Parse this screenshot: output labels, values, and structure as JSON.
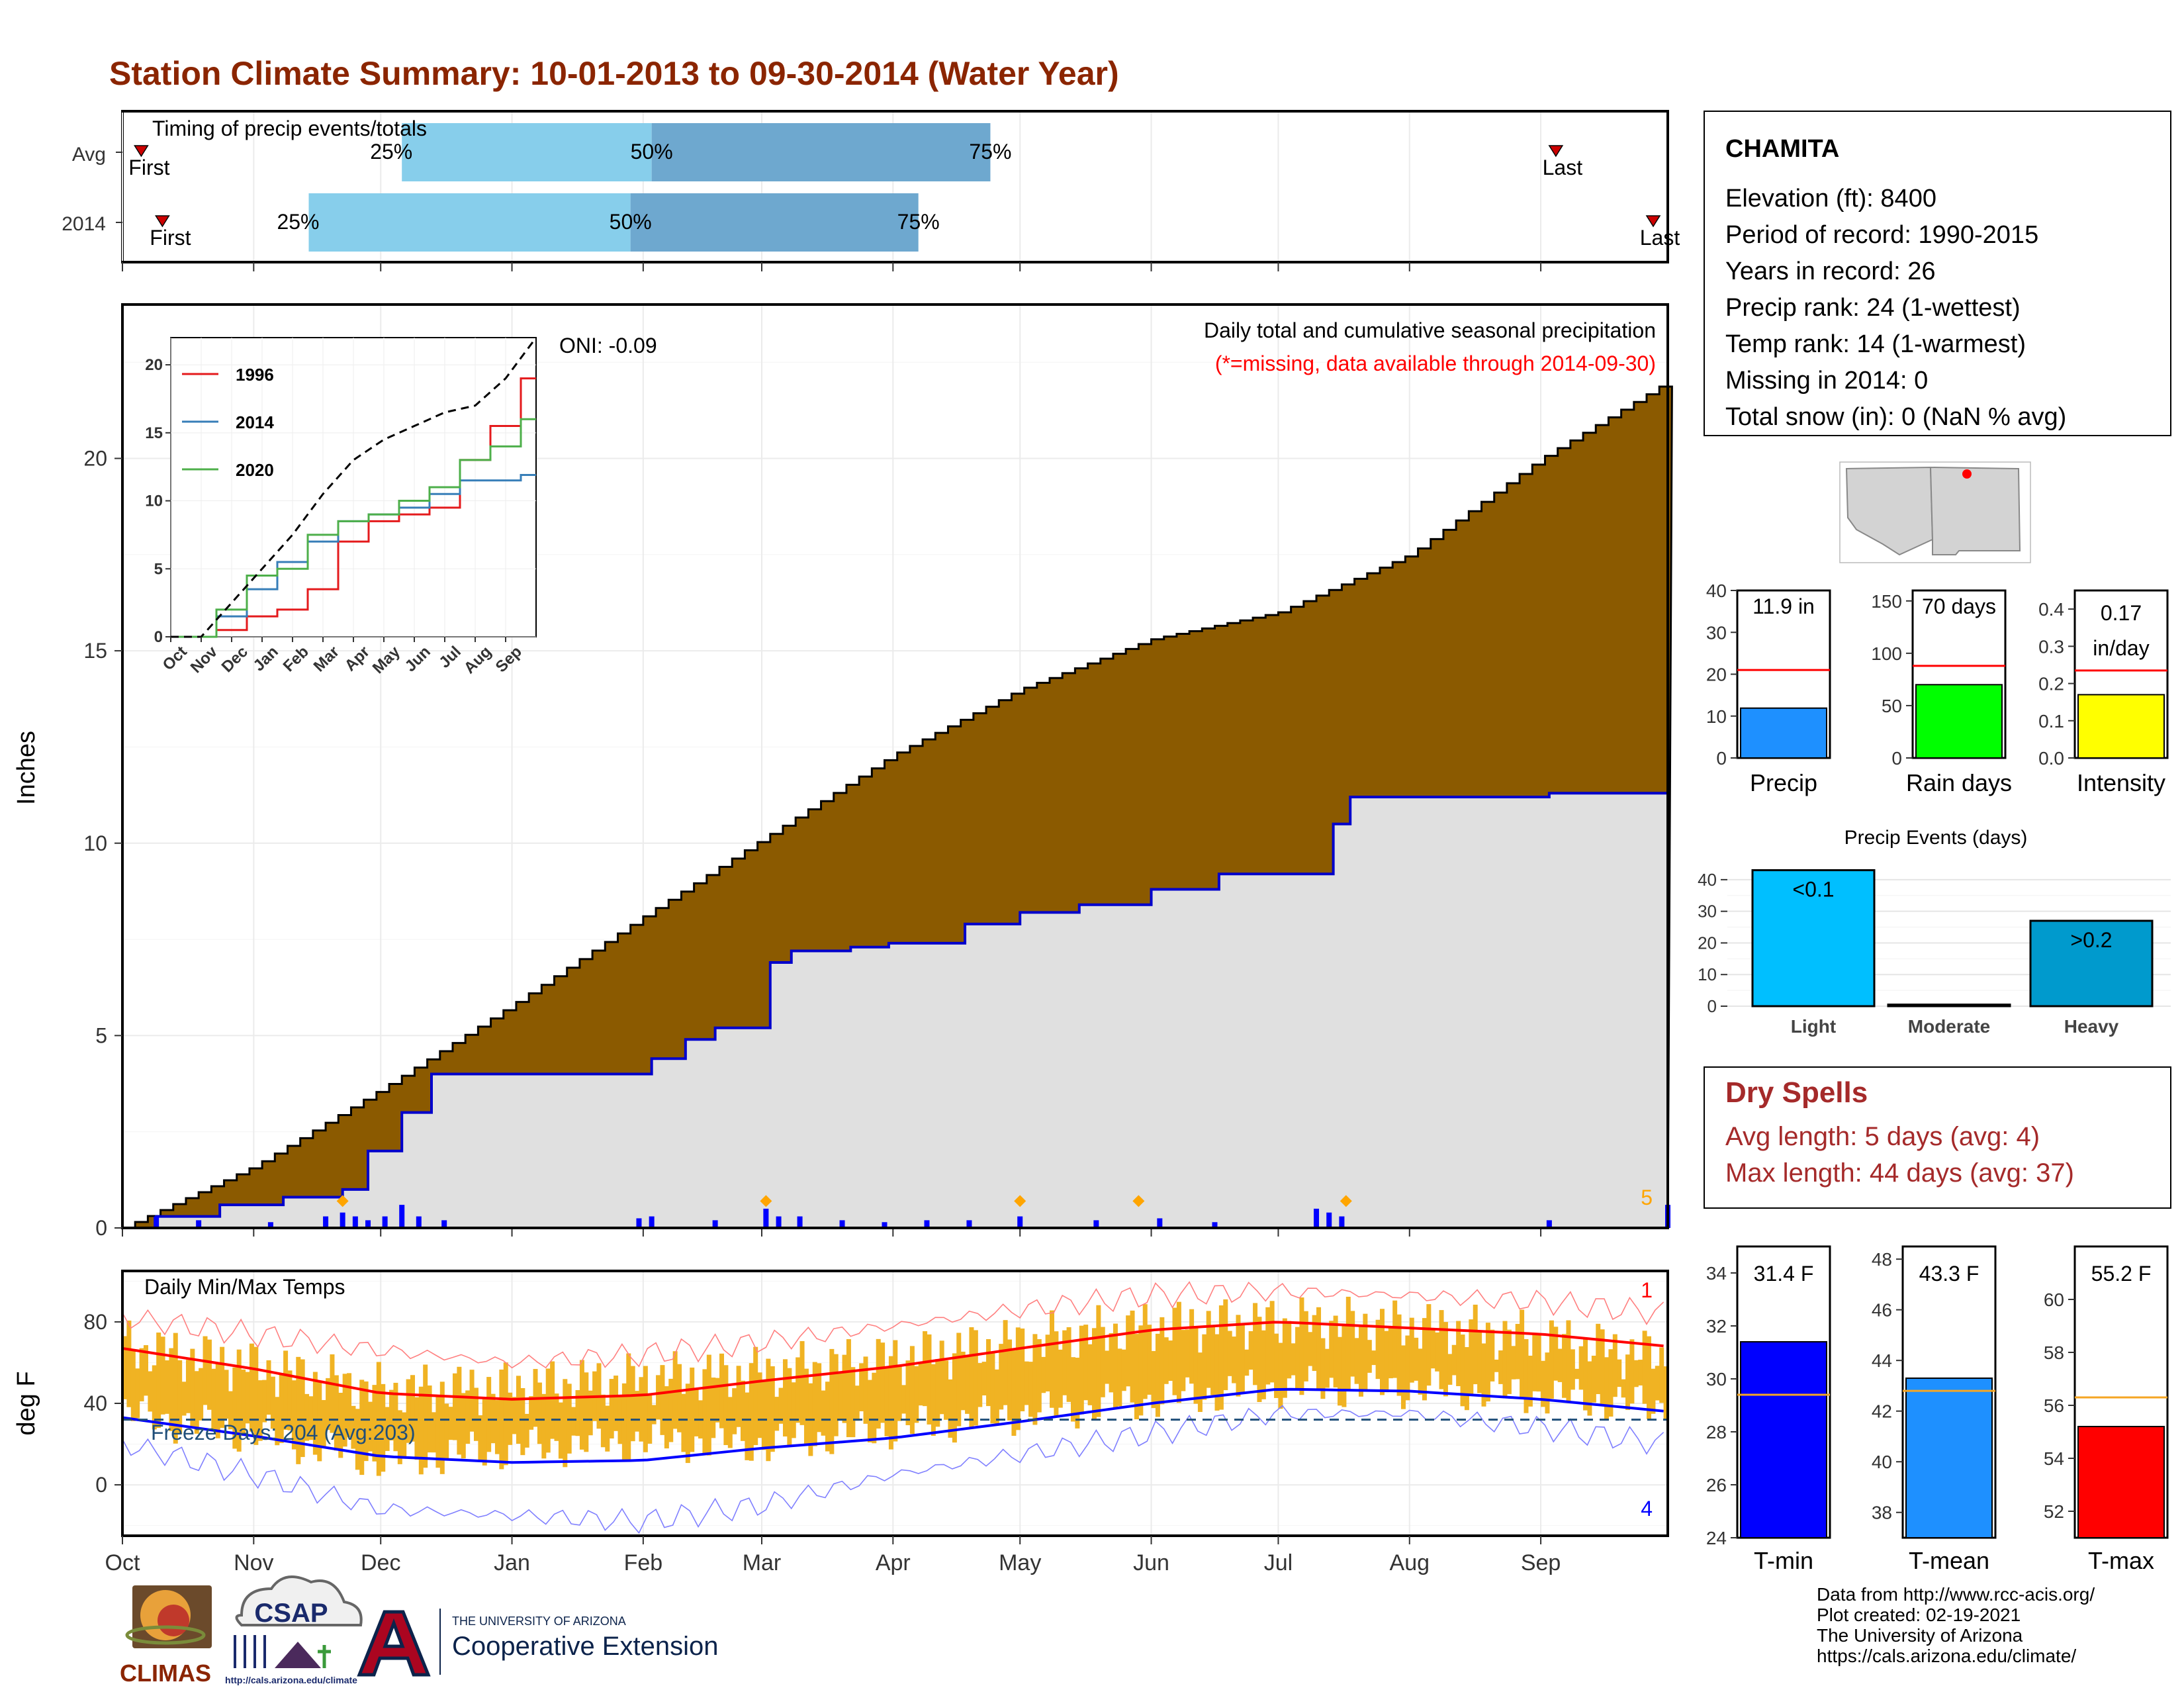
{
  "title": "Station Climate Summary: 10-01-2013 to 09-30-2014 (Water Year)",
  "colors": {
    "title": "#8b2500",
    "area": "#8b5a00",
    "season_line": "#0000cc",
    "mask": "#e0e0e0",
    "daily_bars": "#0000ff",
    "q_light": "#87ceeb",
    "q_dark": "#6ea8cf"
  },
  "timing": {
    "label": "Timing of precip events/totals",
    "rows": [
      {
        "name": "Avg",
        "first_label": "First",
        "last_label": "Last",
        "q25": "25%",
        "q50": "50%",
        "q75": "75%",
        "first_day": 1,
        "q25_day": 66,
        "q50_day": 125,
        "q75_day": 205,
        "last_day": 342
      },
      {
        "name": "2014",
        "first_label": "First",
        "last_label": "Last",
        "q25": "25%",
        "q50": "50%",
        "q75": "75%",
        "first_day": 6,
        "q25_day": 44,
        "q50_day": 120,
        "q75_day": 188,
        "last_day": 365
      }
    ]
  },
  "station": {
    "name": "CHAMITA",
    "lines": [
      "Elevation (ft): 8400",
      "Period of record: 1990-2015",
      "Years in record: 26",
      "Precip rank: 24 (1-wettest)",
      "Temp rank: 14 (1-warmest)",
      "Missing in 2014: 0",
      "Total snow (in): 0 (NaN % avg)"
    ]
  },
  "precip_panel": {
    "ylabel": "Inches",
    "oni": "ONI: -0.09",
    "desc": "Daily total and cumulative seasonal precipitation",
    "missing_note": "(*=missing, data available through 2014-09-30)",
    "corner_label": "5",
    "y_ticks": [
      "0",
      "5",
      "10",
      "15",
      "20"
    ]
  },
  "inset": {
    "legend": [
      "1996",
      "2014",
      "2020"
    ],
    "y_ticks": [
      "0",
      "5",
      "10",
      "15",
      "20"
    ],
    "x_ticks": [
      "Oct",
      "Nov",
      "Dec",
      "Jan",
      "Feb",
      "Mar",
      "Apr",
      "May",
      "Jun",
      "Jul",
      "Aug",
      "Sep"
    ]
  },
  "temp_panel": {
    "ylabel": "deg F",
    "label": "Daily Min/Max Temps",
    "freeze": "Freeze Days: 204 (Avg:203)",
    "top_right": "1",
    "bottom_right": "4",
    "y_ticks": [
      "0",
      "40",
      "80"
    ]
  },
  "months": [
    "Oct",
    "Nov",
    "Dec",
    "Jan",
    "Feb",
    "Mar",
    "Apr",
    "May",
    "Jun",
    "Jul",
    "Aug",
    "Sep"
  ],
  "mini_precip": {
    "label": "Precip",
    "value_label": "11.9 in",
    "y_ticks": [
      "0",
      "10",
      "20",
      "30",
      "40"
    ]
  },
  "mini_raindays": {
    "label": "Rain days",
    "value_label": "70 days",
    "y_ticks": [
      "0",
      "50",
      "100",
      "150"
    ]
  },
  "mini_intensity": {
    "label": "Intensity",
    "value_label": "0.17",
    "value_unit": "in/day",
    "y_ticks": [
      "0.0",
      "0.1",
      "0.2",
      "0.3",
      "0.4"
    ]
  },
  "events": {
    "title": "Precip Events (days)",
    "categories": [
      "Light",
      "Moderate",
      "Heavy"
    ],
    "bar_labels": [
      "<0.1",
      "",
      ">0.2"
    ],
    "y_ticks": [
      "0",
      "10",
      "20",
      "30",
      "40"
    ]
  },
  "dry_spells": {
    "title": "Dry Spells",
    "avg": "Avg length: 5 days (avg: 4)",
    "max": "Max length: 44 days (avg: 37)"
  },
  "tmin_box": {
    "label": "T-min",
    "value_label": "31.4 F",
    "y_ticks": [
      "24",
      "26",
      "28",
      "30",
      "32",
      "34"
    ]
  },
  "tmean_box": {
    "label": "T-mean",
    "value_label": "43.3 F",
    "y_ticks": [
      "38",
      "40",
      "42",
      "44",
      "46",
      "48"
    ]
  },
  "tmax_box": {
    "label": "T-max",
    "value_label": "55.2 F",
    "y_ticks": [
      "52",
      "54",
      "56",
      "58",
      "60"
    ]
  },
  "footer": [
    "Data from http://www.rcc-acis.org/",
    "Plot created: 02-19-2021",
    "The University of Arizona",
    "https://cals.arizona.edu/climate/"
  ],
  "logos": {
    "climas": "CLIMAS",
    "csap": "CSAP",
    "csap_url": "http://cals.arizona.edu/climate",
    "ua_top": "THE UNIVERSITY OF ARIZONA",
    "ua_bottom": "Cooperative Extension"
  },
  "chart_data": [
    {
      "type": "area",
      "title": "Daily total and cumulative seasonal precipitation",
      "ylabel": "Inches",
      "ylim": [
        0,
        24
      ],
      "x_months": [
        "Oct",
        "Nov",
        "Dec",
        "Jan",
        "Feb",
        "Mar",
        "Apr",
        "May",
        "Jun",
        "Jul",
        "Aug",
        "Sep"
      ],
      "series": [
        {
          "name": "average cumulative",
          "x_day": [
            0,
            31,
            61,
            92,
            123,
            151,
            182,
            212,
            243,
            273,
            304,
            335,
            365
          ],
          "values": [
            0,
            1.6,
            3.6,
            5.8,
            8.1,
            10.1,
            12.3,
            14.0,
            15.3,
            16.0,
            17.5,
            20.0,
            22.0
          ]
        },
        {
          "name": "2014 cumulative",
          "x_day": [
            0,
            8,
            23,
            38,
            52,
            58,
            66,
            73,
            120,
            125,
            133,
            140,
            152,
            153,
            158,
            172,
            181,
            199,
            212,
            226,
            243,
            259,
            282,
            286,
            290,
            337,
            364,
            365
          ],
          "values": [
            0,
            0.3,
            0.6,
            0.8,
            1.0,
            2.0,
            3.0,
            4.0,
            4.0,
            4.4,
            4.9,
            5.2,
            5.2,
            6.9,
            7.2,
            7.3,
            7.4,
            7.9,
            8.2,
            8.4,
            8.8,
            9.2,
            9.2,
            10.5,
            11.2,
            11.3,
            11.3,
            11.9
          ]
        }
      ],
      "daily_bars": {
        "x_day": [
          8,
          18,
          35,
          48,
          52,
          55,
          58,
          62,
          66,
          70,
          76,
          122,
          125,
          140,
          152,
          155,
          160,
          170,
          180,
          190,
          200,
          212,
          230,
          245,
          258,
          282,
          285,
          288,
          337,
          365
        ],
        "values": [
          0.3,
          0.2,
          0.15,
          0.3,
          0.4,
          0.3,
          0.2,
          0.3,
          0.6,
          0.3,
          0.2,
          0.25,
          0.3,
          0.2,
          0.5,
          0.3,
          0.3,
          0.2,
          0.15,
          0.2,
          0.2,
          0.3,
          0.2,
          0.25,
          0.15,
          0.5,
          0.4,
          0.3,
          0.2,
          0.6
        ]
      },
      "missing_markers_day": [
        52,
        152,
        212,
        240,
        289
      ]
    },
    {
      "type": "line",
      "title": "",
      "ylim": [
        0,
        22
      ],
      "x_months": [
        "Oct",
        "Nov",
        "Dec",
        "Jan",
        "Feb",
        "Mar",
        "Apr",
        "May",
        "Jun",
        "Jul",
        "Aug",
        "Sep"
      ],
      "series": [
        {
          "name": "1996",
          "values": [
            0,
            0.5,
            1.5,
            2.0,
            3.5,
            7.0,
            8.5,
            9.0,
            9.5,
            13.0,
            15.5,
            19.0
          ]
        },
        {
          "name": "2014",
          "values": [
            0,
            1.5,
            3.5,
            5.5,
            7.0,
            8.5,
            9.0,
            9.5,
            10.5,
            11.5,
            11.5,
            11.9
          ]
        },
        {
          "name": "2020",
          "values": [
            0,
            2.0,
            4.5,
            5.0,
            7.5,
            8.5,
            9.0,
            10.0,
            11.0,
            13.0,
            14.0,
            16.0
          ]
        },
        {
          "name": "average",
          "values": [
            0,
            2.5,
            5.0,
            7.5,
            10.5,
            13.0,
            14.5,
            15.5,
            16.5,
            17.0,
            19.0,
            22.0
          ]
        }
      ]
    },
    {
      "type": "line",
      "title": "Daily Min/Max Temps",
      "ylabel": "deg F",
      "ylim": [
        -25,
        105
      ],
      "x_months": [
        "Oct",
        "Nov",
        "Dec",
        "Jan",
        "Feb",
        "Mar",
        "Apr",
        "May",
        "Jun",
        "Jul",
        "Aug",
        "Sep"
      ],
      "series": [
        {
          "name": "avg max",
          "x_day": [
            0,
            31,
            61,
            92,
            123,
            151,
            182,
            212,
            243,
            273,
            304,
            335,
            365
          ],
          "values": [
            67,
            57,
            45,
            42,
            44,
            51,
            58,
            67,
            76,
            80,
            77,
            74,
            68
          ]
        },
        {
          "name": "avg min",
          "x_day": [
            0,
            31,
            61,
            92,
            123,
            151,
            182,
            212,
            243,
            273,
            304,
            335,
            365
          ],
          "values": [
            33,
            24,
            14,
            11,
            12,
            18,
            23,
            31,
            40,
            47,
            46,
            42,
            36
          ]
        },
        {
          "name": "record max",
          "x_day": [
            0,
            31,
            61,
            92,
            123,
            151,
            182,
            212,
            243,
            273,
            304,
            335,
            365
          ],
          "values": [
            82,
            74,
            66,
            60,
            64,
            70,
            78,
            86,
            93,
            95,
            93,
            90,
            84
          ]
        },
        {
          "name": "record min",
          "x_day": [
            0,
            31,
            61,
            92,
            123,
            151,
            182,
            212,
            243,
            273,
            304,
            335,
            365
          ],
          "values": [
            20,
            5,
            -12,
            -15,
            -18,
            -10,
            5,
            15,
            25,
            35,
            35,
            28,
            20
          ]
        },
        {
          "name": "2014 max",
          "x_day": [
            0,
            31,
            61,
            92,
            123,
            151,
            182,
            212,
            243,
            273,
            304,
            335,
            365
          ],
          "values": [
            68,
            58,
            46,
            48,
            52,
            55,
            62,
            70,
            78,
            80,
            78,
            72,
            62
          ]
        },
        {
          "name": "2014 min",
          "x_day": [
            0,
            31,
            61,
            92,
            123,
            151,
            182,
            212,
            243,
            273,
            304,
            335,
            365
          ],
          "values": [
            35,
            25,
            12,
            18,
            22,
            20,
            28,
            35,
            42,
            48,
            48,
            44,
            38
          ]
        }
      ],
      "freeze_threshold": 32
    },
    {
      "type": "bar",
      "title": "",
      "categories": [
        "Precip"
      ],
      "values": [
        11.9
      ],
      "avg": 21,
      "ylim": [
        0,
        40
      ]
    },
    {
      "type": "bar",
      "title": "",
      "categories": [
        "Rain days"
      ],
      "values": [
        70
      ],
      "avg": 88,
      "ylim": [
        0,
        160
      ]
    },
    {
      "type": "bar",
      "title": "",
      "categories": [
        "Intensity"
      ],
      "values": [
        0.17
      ],
      "avg": 0.235,
      "ylim": [
        0,
        0.45
      ]
    },
    {
      "type": "bar",
      "title": "Precip Events (days)",
      "categories": [
        "Light",
        "Moderate",
        "Heavy"
      ],
      "values": [
        43,
        0.5,
        27
      ],
      "ylim": [
        0,
        45
      ]
    },
    {
      "type": "bar",
      "title": "",
      "categories": [
        "T-min"
      ],
      "values": [
        31.4
      ],
      "avg": 29.4,
      "ylim": [
        24,
        35
      ]
    },
    {
      "type": "bar",
      "title": "",
      "categories": [
        "T-mean"
      ],
      "values": [
        43.3
      ],
      "avg": 42.8,
      "ylim": [
        37,
        48.5
      ]
    },
    {
      "type": "bar",
      "title": "",
      "categories": [
        "T-max"
      ],
      "values": [
        55.2
      ],
      "avg": 56.3,
      "ylim": [
        51,
        62
      ]
    }
  ]
}
